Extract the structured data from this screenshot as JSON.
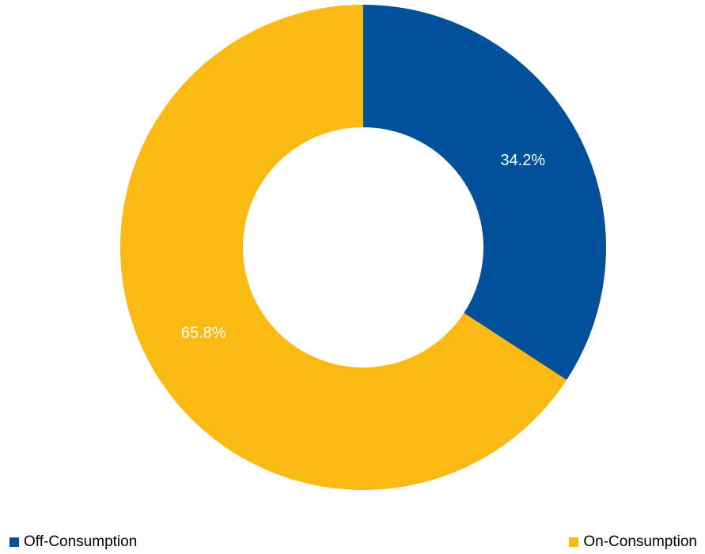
{
  "chart_data": {
    "type": "pie",
    "donut": true,
    "categories": [
      "Off-Consumption",
      "On-Consumption"
    ],
    "values": [
      34.2,
      65.8
    ],
    "data_labels": [
      "34.2%",
      "65.8%"
    ],
    "colors": [
      "#00509a",
      "#fbb914"
    ],
    "legend_position": "bottom"
  }
}
